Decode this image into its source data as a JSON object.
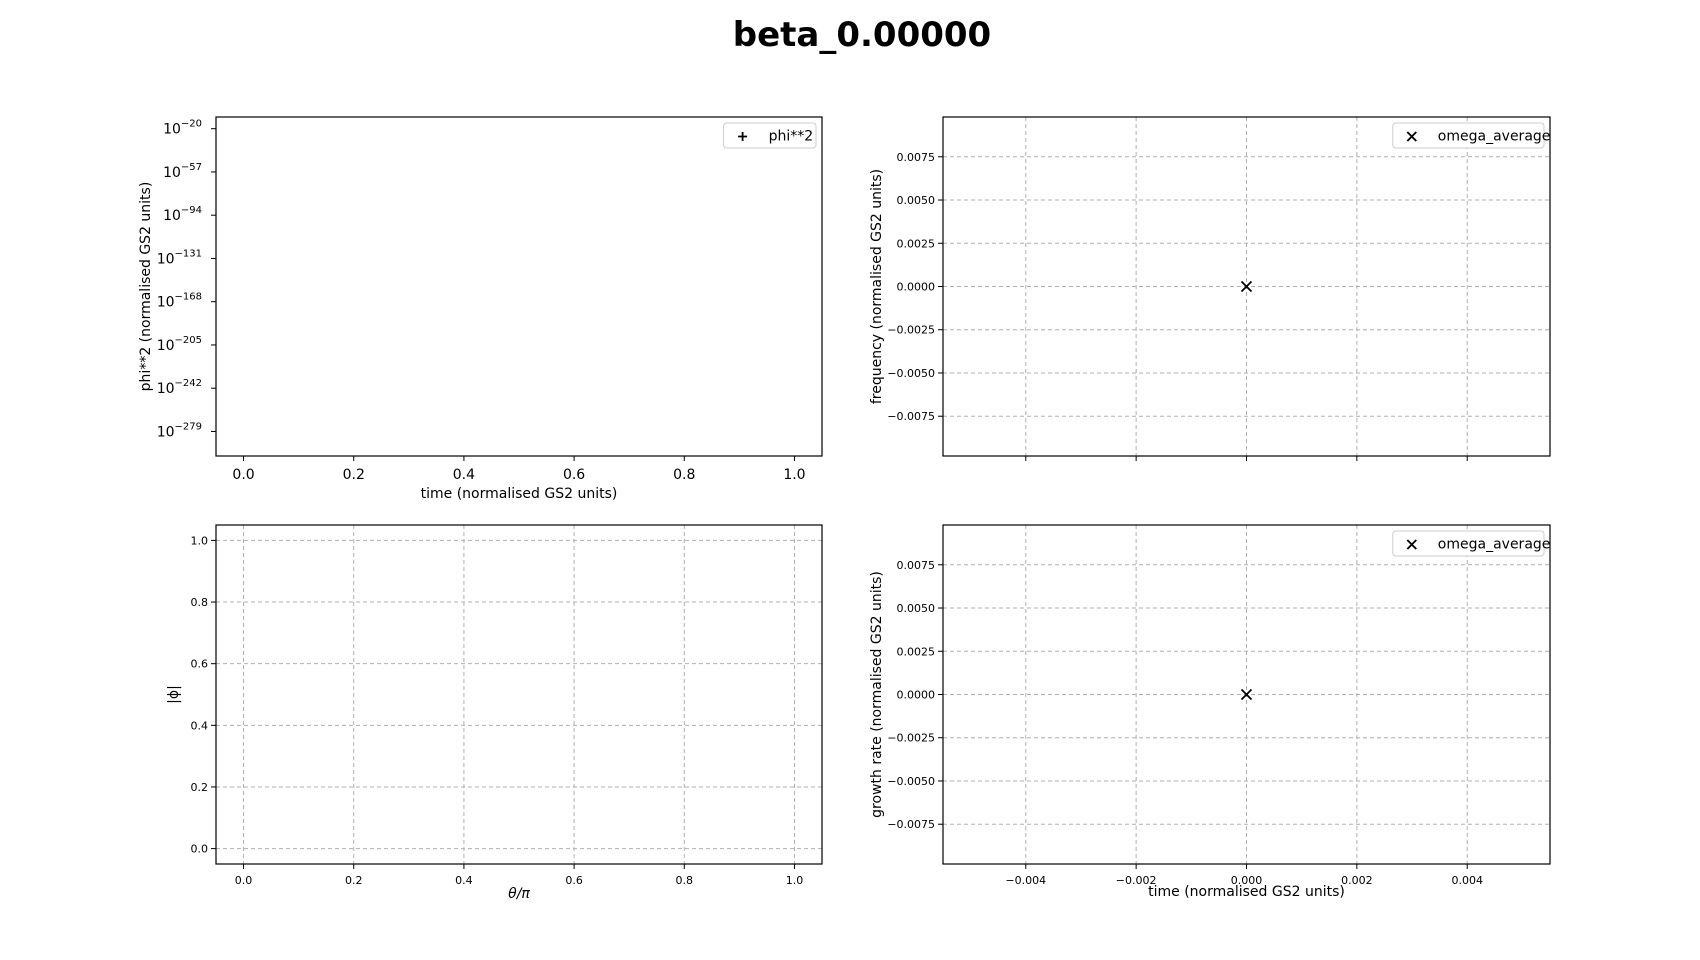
{
  "figure": {
    "title": "beta_0.00000"
  },
  "chart_data": [
    {
      "id": "phi2",
      "type": "scatter",
      "title": "",
      "xlabel": "time (normalised GS2 units)",
      "ylabel": "phi**2 (normalised GS2 units)",
      "xlim": [
        -0.05,
        1.05
      ],
      "ylim_exponents": [
        -10,
        -300
      ],
      "yscale": "log",
      "grid": false,
      "xticks": [
        0.0,
        0.2,
        0.4,
        0.6,
        0.8,
        1.0
      ],
      "xtick_labels": [
        "0.0",
        "0.2",
        "0.4",
        "0.6",
        "0.8",
        "1.0"
      ],
      "ytick_exponents": [
        -20,
        -57,
        -94,
        -131,
        -168,
        -205,
        -242,
        -279
      ],
      "ytick_labels": [
        {
          "base": "10",
          "exp": "−20"
        },
        {
          "base": "10",
          "exp": "−57"
        },
        {
          "base": "10",
          "exp": "−94"
        },
        {
          "base": "10",
          "exp": "−131"
        },
        {
          "base": "10",
          "exp": "−168"
        },
        {
          "base": "10",
          "exp": "−205"
        },
        {
          "base": "10",
          "exp": "−242"
        },
        {
          "base": "10",
          "exp": "−279"
        }
      ],
      "legend": {
        "position": "upper-right",
        "entries": [
          {
            "label": "phi**2",
            "marker": "+"
          }
        ]
      },
      "series": [
        {
          "name": "phi**2",
          "marker": "+",
          "x": [],
          "y": []
        }
      ]
    },
    {
      "id": "frequency",
      "type": "scatter",
      "title": "",
      "xlabel": "",
      "ylabel": "frequency (normalised GS2 units)",
      "xlim": [
        -0.0055,
        0.0055
      ],
      "ylim": [
        -0.0098,
        0.0098
      ],
      "grid": true,
      "xticks": [
        -0.004,
        -0.002,
        0.0,
        0.002,
        0.004
      ],
      "xtick_labels": [
        "",
        "",
        "",
        "",
        ""
      ],
      "yticks": [
        0.0075,
        0.005,
        0.0025,
        0.0,
        -0.0025,
        -0.005,
        -0.0075
      ],
      "ytick_labels": [
        "0.0075",
        "0.0050",
        "0.0025",
        "0.0000",
        "−0.0025",
        "−0.0050",
        "−0.0075"
      ],
      "legend": {
        "position": "upper-right",
        "entries": [
          {
            "label": "omega_average",
            "marker": "x"
          }
        ]
      },
      "series": [
        {
          "name": "omega_average",
          "marker": "x",
          "x": [
            0.0
          ],
          "y": [
            0.0
          ]
        }
      ]
    },
    {
      "id": "phi_theta",
      "type": "line",
      "title": "",
      "xlabel": "θ/π",
      "ylabel": "|ϕ|",
      "xlim": [
        -0.05,
        1.05
      ],
      "ylim": [
        -0.05,
        1.05
      ],
      "grid": true,
      "xticks": [
        0.0,
        0.2,
        0.4,
        0.6,
        0.8,
        1.0
      ],
      "xtick_labels": [
        "0.0",
        "0.2",
        "0.4",
        "0.6",
        "0.8",
        "1.0"
      ],
      "yticks": [
        0.0,
        0.2,
        0.4,
        0.6,
        0.8,
        1.0
      ],
      "ytick_labels": [
        "0.0",
        "0.2",
        "0.4",
        "0.6",
        "0.8",
        "1.0"
      ],
      "series": []
    },
    {
      "id": "growth",
      "type": "scatter",
      "title": "",
      "xlabel": "time (normalised GS2 units)",
      "ylabel": "growth rate (normalised GS2 units)",
      "xlim": [
        -0.0055,
        0.0055
      ],
      "ylim": [
        -0.0098,
        0.0098
      ],
      "grid": true,
      "xticks": [
        -0.004,
        -0.002,
        0.0,
        0.002,
        0.004
      ],
      "xtick_labels": [
        "−0.004",
        "−0.002",
        "0.000",
        "0.002",
        "0.004"
      ],
      "yticks": [
        0.0075,
        0.005,
        0.0025,
        0.0,
        -0.0025,
        -0.005,
        -0.0075
      ],
      "ytick_labels": [
        "0.0075",
        "0.0050",
        "0.0025",
        "0.0000",
        "−0.0025",
        "−0.0050",
        "−0.0075"
      ],
      "legend": {
        "position": "upper-right",
        "entries": [
          {
            "label": "omega_average",
            "marker": "x"
          }
        ]
      },
      "series": [
        {
          "name": "omega_average",
          "marker": "x",
          "x": [
            0.0
          ],
          "y": [
            0.0
          ]
        }
      ]
    }
  ]
}
